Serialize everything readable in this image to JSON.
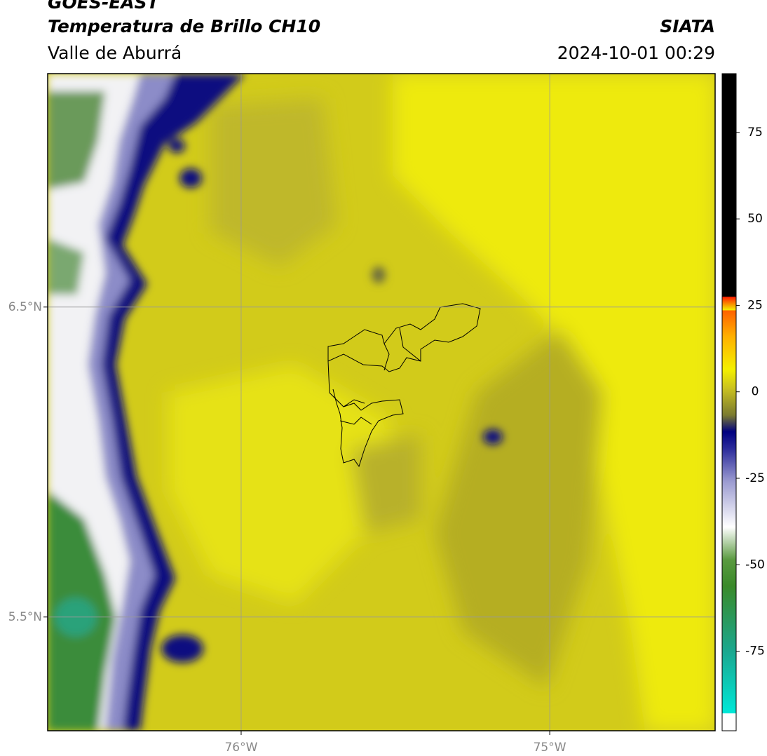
{
  "chart_data": {
    "type": "map",
    "title": "GOES-EAST",
    "subtitle": "Temperatura de Brillo CH10",
    "region": "Valle de Aburrá",
    "source": "SIATA",
    "datetime": "2024-10-01 00:29",
    "xlim": [
      -76.627,
      -74.464
    ],
    "xticks": [
      {
        "value": -76,
        "label": "76°W"
      },
      {
        "value": -75,
        "label": "75°W"
      }
    ],
    "ylim": [
      5.133,
      7.253
    ],
    "yticks": [
      {
        "value": 6.5,
        "label": "6.5°N"
      },
      {
        "value": 5.5,
        "label": "5.5°N"
      }
    ],
    "grid": true,
    "colorbar": {
      "lim": [
        -98,
        92
      ],
      "ticks": [
        75,
        50,
        25,
        0,
        -25,
        -50,
        -75
      ]
    }
  }
}
